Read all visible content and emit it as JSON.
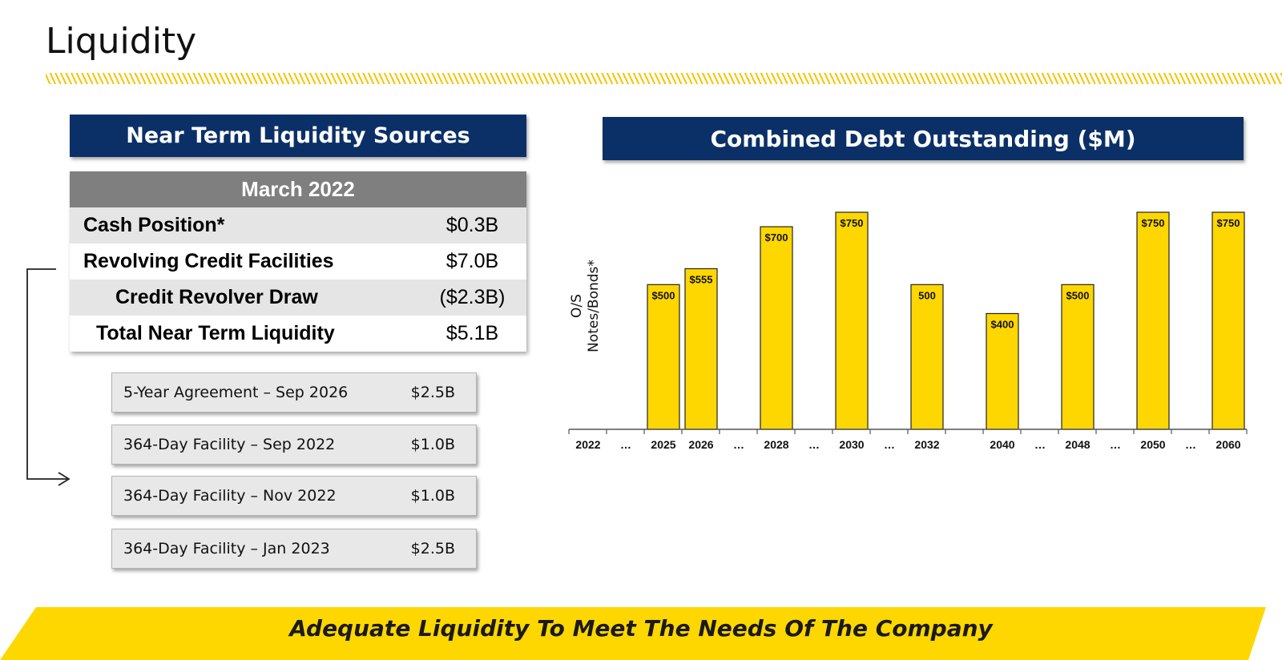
{
  "title": "Liquidity",
  "left_panel": {
    "header": "Near Term Liquidity Sources",
    "table_header": "March 2022",
    "rows": [
      {
        "label": "Cash Position*",
        "value": "$0.3B"
      },
      {
        "label": "Revolving Credit Facilities",
        "value": "$7.0B"
      },
      {
        "label": "Credit Revolver Draw",
        "value": "($2.3B)"
      },
      {
        "label": "Total Near Term Liquidity",
        "value": "$5.1B"
      }
    ],
    "facilities": [
      {
        "label": "5-Year Agreement – Sep 2026",
        "value": "$2.5B"
      },
      {
        "label": "364-Day Facility – Sep 2022",
        "value": "$1.0B"
      },
      {
        "label": "364-Day Facility – Nov 2022",
        "value": "$1.0B"
      },
      {
        "label": "364-Day Facility – Jan 2023",
        "value": "$2.5B"
      }
    ]
  },
  "chart_data": {
    "type": "bar",
    "title": "Combined Debt Outstanding ($M)",
    "ylabel_line1": "O/S",
    "ylabel_line2": "Notes/Bonds*",
    "ylim": [
      0,
      750
    ],
    "grid": false,
    "bar_color": "#ffd700",
    "categories": [
      "2022",
      "…",
      "2025",
      "2026",
      "…",
      "2028",
      "…",
      "2030",
      "…",
      "2032",
      "",
      "2040",
      "…",
      "2048",
      "…",
      "2050",
      "…",
      "2060"
    ],
    "values": [
      0,
      0,
      500,
      555,
      0,
      700,
      0,
      750,
      0,
      500,
      0,
      400,
      0,
      500,
      0,
      750,
      0,
      750
    ],
    "data_labels": [
      "",
      "",
      "$500",
      "$555",
      "",
      "$700",
      "",
      "$750",
      "",
      "500",
      "",
      "$400",
      "",
      "$500",
      "",
      "$750",
      "",
      "$750"
    ]
  },
  "banner": {
    "text": "Adequate Liquidity To Meet The Needs Of The Company",
    "color": "#ffd700"
  },
  "colors": {
    "header_blue": "#0b3068",
    "table_header_gray": "#7f7f7f",
    "accent_yellow": "#f5c400"
  }
}
